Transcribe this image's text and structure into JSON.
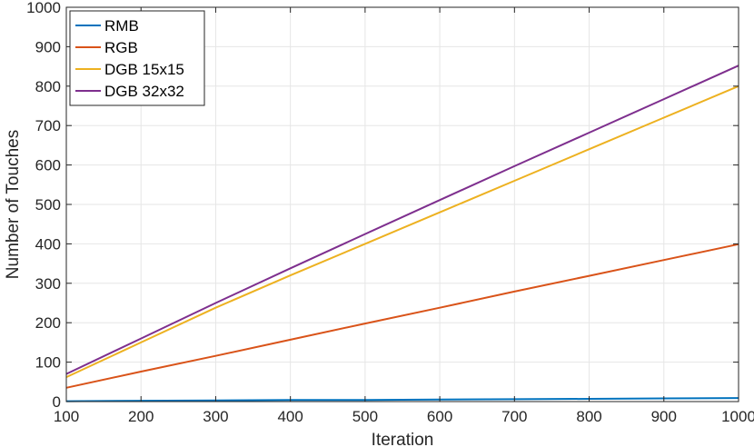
{
  "chart_data": {
    "type": "line",
    "title": "",
    "xlabel": "Iteration",
    "ylabel": "Number of Touches",
    "xlim": [
      100,
      1000
    ],
    "ylim": [
      0,
      1000
    ],
    "xticks": [
      100,
      200,
      300,
      400,
      500,
      600,
      700,
      800,
      900,
      1000
    ],
    "yticks": [
      0,
      100,
      200,
      300,
      400,
      500,
      600,
      700,
      800,
      900,
      1000
    ],
    "grid": true,
    "legend_position": "top-left",
    "x": [
      100,
      200,
      300,
      400,
      500,
      600,
      700,
      800,
      900,
      1000
    ],
    "series": [
      {
        "name": "RMB",
        "color": "#0072BD",
        "values": [
          1,
          2,
          3,
          4,
          4,
          5,
          6,
          7,
          8,
          9
        ]
      },
      {
        "name": "RGB",
        "color": "#D95319",
        "values": [
          35,
          76,
          116,
          157,
          198,
          238,
          279,
          319,
          359,
          399
        ]
      },
      {
        "name": "DGB 15x15",
        "color": "#EDB120",
        "values": [
          62,
          150,
          238,
          320,
          400,
          480,
          560,
          640,
          720,
          800
        ]
      },
      {
        "name": "DGB 32x32",
        "color": "#7E2F8E",
        "values": [
          70,
          160,
          250,
          338,
          425,
          511,
          597,
          682,
          767,
          852
        ]
      }
    ]
  }
}
